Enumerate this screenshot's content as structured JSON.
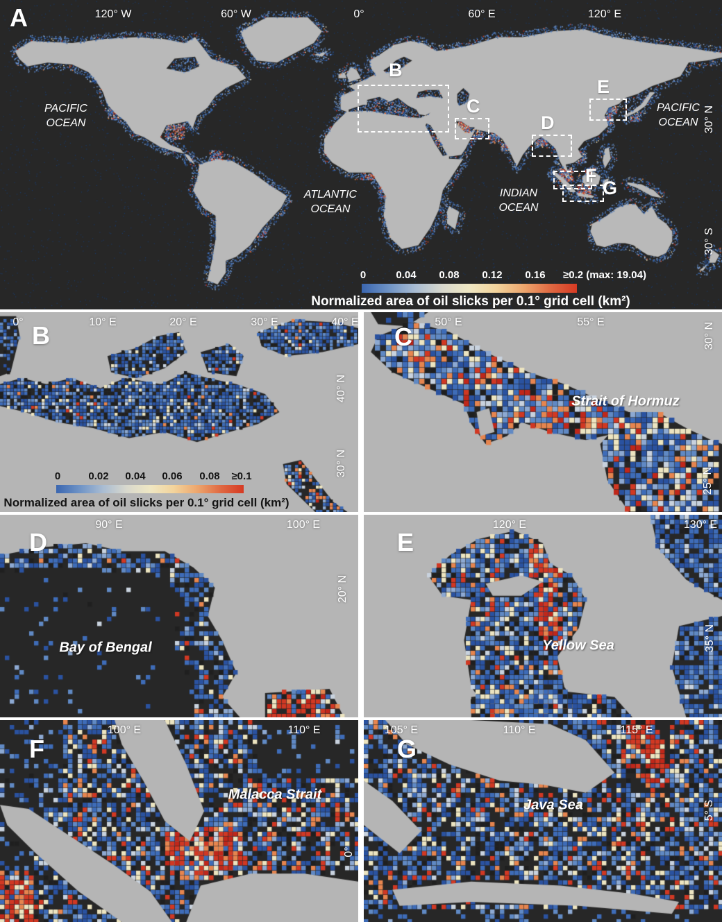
{
  "colors": {
    "ocean_dark": "#272727",
    "land_gray": "#b5b5b5",
    "colormap": [
      "#3a66b0",
      "#6e93c6",
      "#a9bcd2",
      "#d8d8cd",
      "#efe7c3",
      "#f3d49c",
      "#eda76e",
      "#e06a43",
      "#d63a23"
    ]
  },
  "panels": {
    "a": {
      "label": "A",
      "top_ticks": [
        "120° W",
        "60° W",
        "0°",
        "60° E",
        "120° E"
      ],
      "right_ticks": [
        "30° N",
        "30° S"
      ],
      "ocean_labels": [
        "PACIFIC OCEAN",
        "ATLANTIC OCEAN",
        "INDIAN OCEAN",
        "PACIFIC OCEAN"
      ],
      "inset_boxes": [
        "B",
        "C",
        "D",
        "E",
        "F",
        "G"
      ],
      "colorbar": {
        "ticks": [
          "0",
          "0.04",
          "0.08",
          "0.12",
          "0.16",
          "≥0.2 (max: 19.04)"
        ],
        "label": "Normalized area of oil slicks per 0.1° grid cell (km²)"
      }
    },
    "b": {
      "label": "B",
      "top_ticks": [
        "0°",
        "10° E",
        "20° E",
        "30° E",
        "40° E"
      ],
      "right_ticks": [
        "40° N",
        "30° N"
      ],
      "colorbar": {
        "ticks": [
          "0",
          "0.02",
          "0.04",
          "0.06",
          "0.08",
          "≥0.1"
        ],
        "label": "Normalized area of oil slicks per 0.1° grid cell (km²)"
      }
    },
    "c": {
      "label": "C",
      "top_ticks": [
        "50° E",
        "55° E"
      ],
      "right_ticks": [
        "30° N",
        "25° N"
      ],
      "sea_label": "Strait of Hormuz"
    },
    "d": {
      "label": "D",
      "top_ticks": [
        "90° E",
        "100° E"
      ],
      "right_ticks": [
        "20° N"
      ],
      "sea_label": "Bay of Bengal"
    },
    "e": {
      "label": "E",
      "top_ticks": [
        "120° E",
        "130° E"
      ],
      "right_ticks": [
        "35° N"
      ],
      "sea_label": "Yellow Sea"
    },
    "f": {
      "label": "F",
      "top_ticks": [
        "100° E",
        "110° E"
      ],
      "right_ticks": [
        "0°"
      ],
      "sea_label": "Malacca Strait"
    },
    "g": {
      "label": "G",
      "top_ticks": [
        "105° E",
        "110° E",
        "115° E"
      ],
      "right_ticks": [
        "5° S"
      ],
      "sea_label": "Java Sea"
    }
  }
}
